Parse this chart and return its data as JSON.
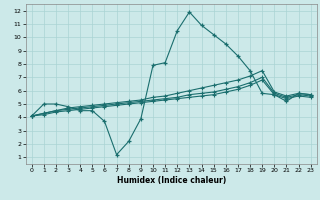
{
  "xlabel": "Humidex (Indice chaleur)",
  "xlim": [
    -0.5,
    23.5
  ],
  "ylim": [
    0.5,
    12.5
  ],
  "xticks": [
    0,
    1,
    2,
    3,
    4,
    5,
    6,
    7,
    8,
    9,
    10,
    11,
    12,
    13,
    14,
    15,
    16,
    17,
    18,
    19,
    20,
    21,
    22,
    23
  ],
  "yticks": [
    1,
    2,
    3,
    4,
    5,
    6,
    7,
    8,
    9,
    10,
    11,
    12
  ],
  "background_color": "#cce9e9",
  "grid_color": "#aad4d4",
  "line_color": "#1a6e6e",
  "line1_x": [
    0,
    1,
    2,
    3,
    4,
    5,
    6,
    7,
    8,
    9,
    10,
    11,
    12,
    13,
    14,
    15,
    16,
    17,
    18,
    19,
    20,
    21,
    22,
    23
  ],
  "line1_y": [
    4.1,
    5.0,
    5.0,
    4.8,
    4.5,
    4.5,
    3.7,
    1.2,
    2.2,
    3.9,
    7.9,
    8.1,
    10.5,
    11.9,
    10.9,
    10.2,
    9.5,
    8.6,
    7.5,
    5.8,
    5.7,
    5.2,
    5.8,
    5.7
  ],
  "line2_x": [
    0,
    1,
    2,
    3,
    4,
    5,
    6,
    7,
    8,
    9,
    10,
    11,
    12,
    13,
    14,
    15,
    16,
    17,
    18,
    19,
    20,
    21,
    22,
    23
  ],
  "line2_y": [
    4.1,
    4.3,
    4.5,
    4.7,
    4.8,
    4.9,
    5.0,
    5.1,
    5.2,
    5.3,
    5.5,
    5.6,
    5.8,
    6.0,
    6.2,
    6.4,
    6.6,
    6.8,
    7.1,
    7.5,
    5.9,
    5.6,
    5.8,
    5.7
  ],
  "line3_x": [
    0,
    1,
    2,
    3,
    4,
    5,
    6,
    7,
    8,
    9,
    10,
    11,
    12,
    13,
    14,
    15,
    16,
    17,
    18,
    19,
    20,
    21,
    22,
    23
  ],
  "line3_y": [
    4.1,
    4.3,
    4.5,
    4.6,
    4.7,
    4.8,
    4.9,
    5.0,
    5.1,
    5.2,
    5.3,
    5.4,
    5.5,
    5.7,
    5.8,
    5.9,
    6.1,
    6.3,
    6.6,
    7.0,
    5.8,
    5.5,
    5.7,
    5.6
  ],
  "line4_x": [
    0,
    1,
    2,
    3,
    4,
    5,
    6,
    7,
    8,
    9,
    10,
    11,
    12,
    13,
    14,
    15,
    16,
    17,
    18,
    19,
    20,
    21,
    22,
    23
  ],
  "line4_y": [
    4.1,
    4.2,
    4.4,
    4.5,
    4.6,
    4.7,
    4.8,
    4.9,
    5.0,
    5.1,
    5.2,
    5.3,
    5.4,
    5.5,
    5.6,
    5.7,
    5.9,
    6.1,
    6.4,
    6.8,
    5.7,
    5.4,
    5.6,
    5.5
  ]
}
